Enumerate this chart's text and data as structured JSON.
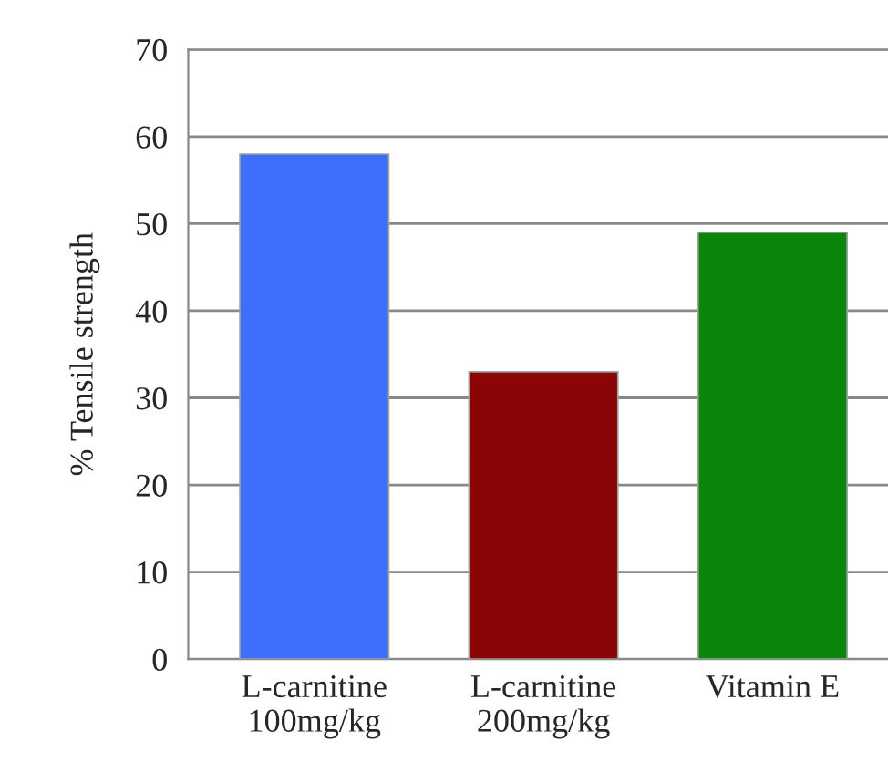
{
  "chart_data": {
    "type": "bar",
    "ylabel": "% Tensile strength",
    "categories": [
      "L-carnitine\n100mg/kg",
      "L-carnitine\n200mg/kg",
      "Vitamin E"
    ],
    "values": [
      58,
      33,
      49
    ],
    "colors": [
      "#3d6ffc",
      "#8a0606",
      "#0a870a"
    ],
    "ylim": [
      0,
      70
    ],
    "yticks": [
      0,
      10,
      20,
      30,
      40,
      50,
      60,
      70
    ],
    "grid": "y"
  }
}
